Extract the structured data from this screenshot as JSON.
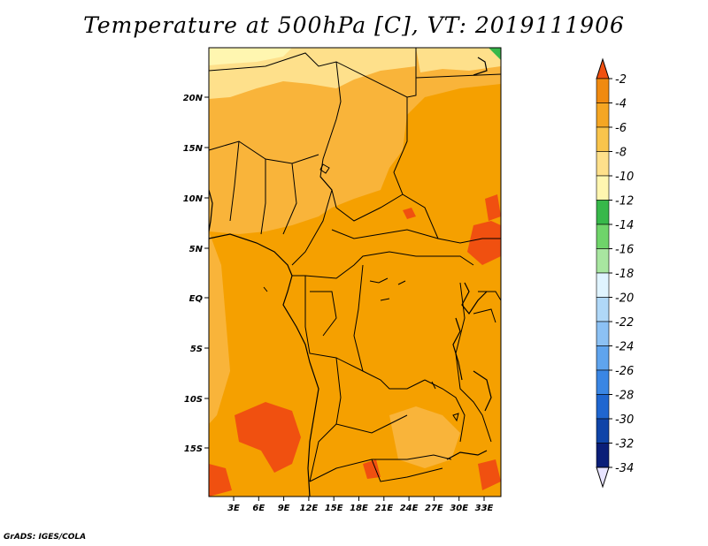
{
  "title": "Temperature at 500hPa [C], VT: 2019111906",
  "credit": "GrADS: IGES/COLA",
  "map": {
    "lat_ticks": [
      "20N",
      "15N",
      "10N",
      "5N",
      "EQ",
      "5S",
      "10S",
      "15S"
    ],
    "lon_ticks": [
      "3E",
      "6E",
      "9E",
      "12E",
      "15E",
      "18E",
      "21E",
      "24E",
      "27E",
      "30E",
      "33E"
    ]
  },
  "colorbar": {
    "labels": [
      "-2",
      "-4",
      "-6",
      "-8",
      "-10",
      "-12",
      "-14",
      "-16",
      "-18",
      "-20",
      "-22",
      "-24",
      "-26",
      "-28",
      "-30",
      "-32",
      "-34"
    ],
    "colors": [
      "#f05010",
      "#f08a10",
      "#f5a623",
      "#f9c44c",
      "#fee08b",
      "#fff6b0",
      "#37b84a",
      "#6fd46a",
      "#a8e6a0",
      "#e0f4ff",
      "#b0d8f8",
      "#8cc1f4",
      "#5fa4ee",
      "#3a86e4",
      "#1f66d0",
      "#0f44a8",
      "#0a1e78",
      "#e8e4ff"
    ]
  }
}
